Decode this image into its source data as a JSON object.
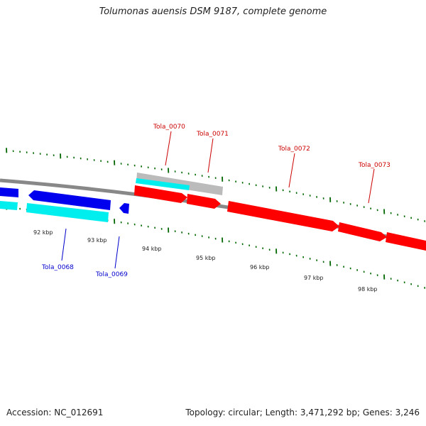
{
  "title": "Tolumonas auensis DSM 9187, complete genome",
  "footer": {
    "accession": "Accession: NC_012691",
    "summary": "Topology: circular; Length: 3,471,292 bp; Genes: 3,246"
  },
  "colors": {
    "forward_cds": "#ff0000",
    "reverse_cds": "#0000ee",
    "forward_rna": "#00eeee",
    "pseudo": "#bbbbbb",
    "backbone": "#888888",
    "tick": "#006600",
    "forward_label": "#cc0000",
    "reverse_label": "#0000cc"
  },
  "scale_labels": [
    "92 kbp",
    "93 kbp",
    "94 kbp",
    "95 kbp",
    "96 kbp",
    "97 kbp",
    "98 kbp"
  ],
  "genes": [
    {
      "label": "Tola_0068",
      "strand": "reverse"
    },
    {
      "label": "Tola_0069",
      "strand": "reverse"
    },
    {
      "label": "Tola_0070",
      "strand": "forward"
    },
    {
      "label": "Tola_0071",
      "strand": "forward"
    },
    {
      "label": "Tola_0072",
      "strand": "forward"
    },
    {
      "label": "Tola_0073",
      "strand": "forward"
    }
  ]
}
